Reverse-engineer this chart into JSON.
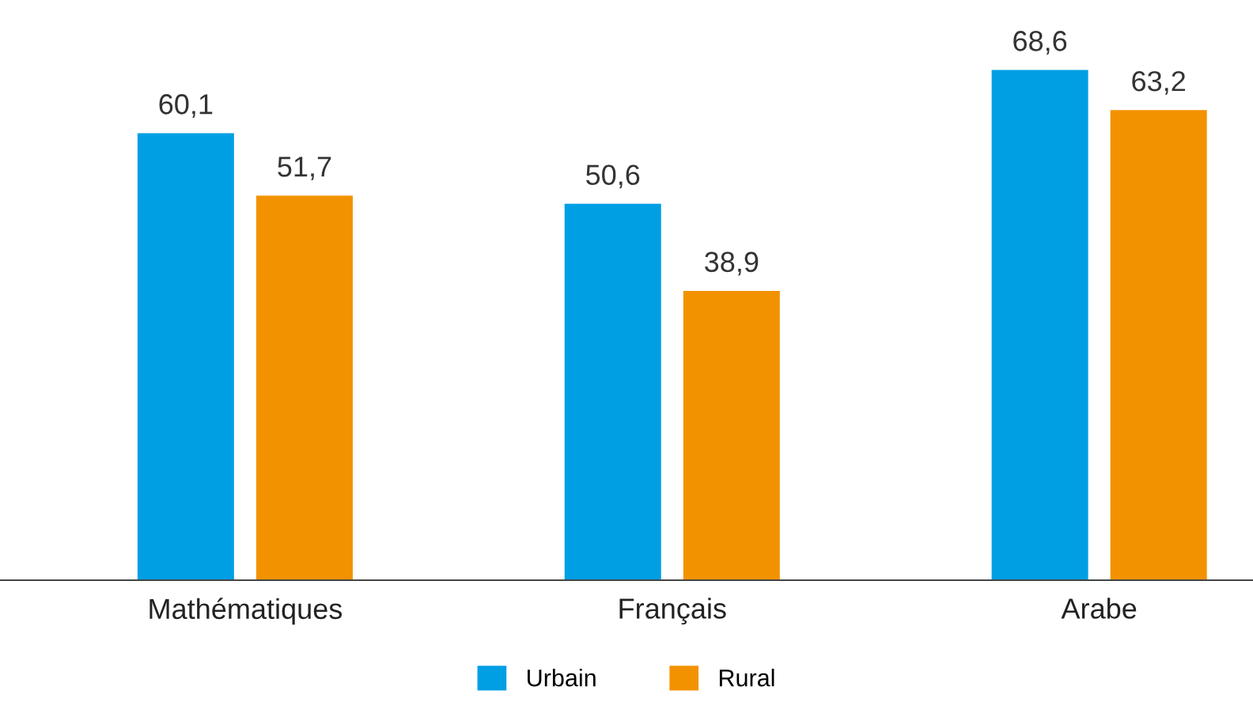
{
  "chart_data": {
    "type": "bar",
    "categories": [
      "Mathématiques",
      "Français",
      "Arabe"
    ],
    "series": [
      {
        "name": "Urbain",
        "color": "#009fe3",
        "values": [
          60.1,
          50.6,
          68.6
        ],
        "value_labels": [
          "60,1",
          "50,6",
          "68,6"
        ]
      },
      {
        "name": "Rural",
        "color": "#f39200",
        "values": [
          51.7,
          38.9,
          63.2
        ],
        "value_labels": [
          "51,7",
          "38,9",
          "63,2"
        ]
      }
    ],
    "legend": "bottom",
    "grid": false
  }
}
